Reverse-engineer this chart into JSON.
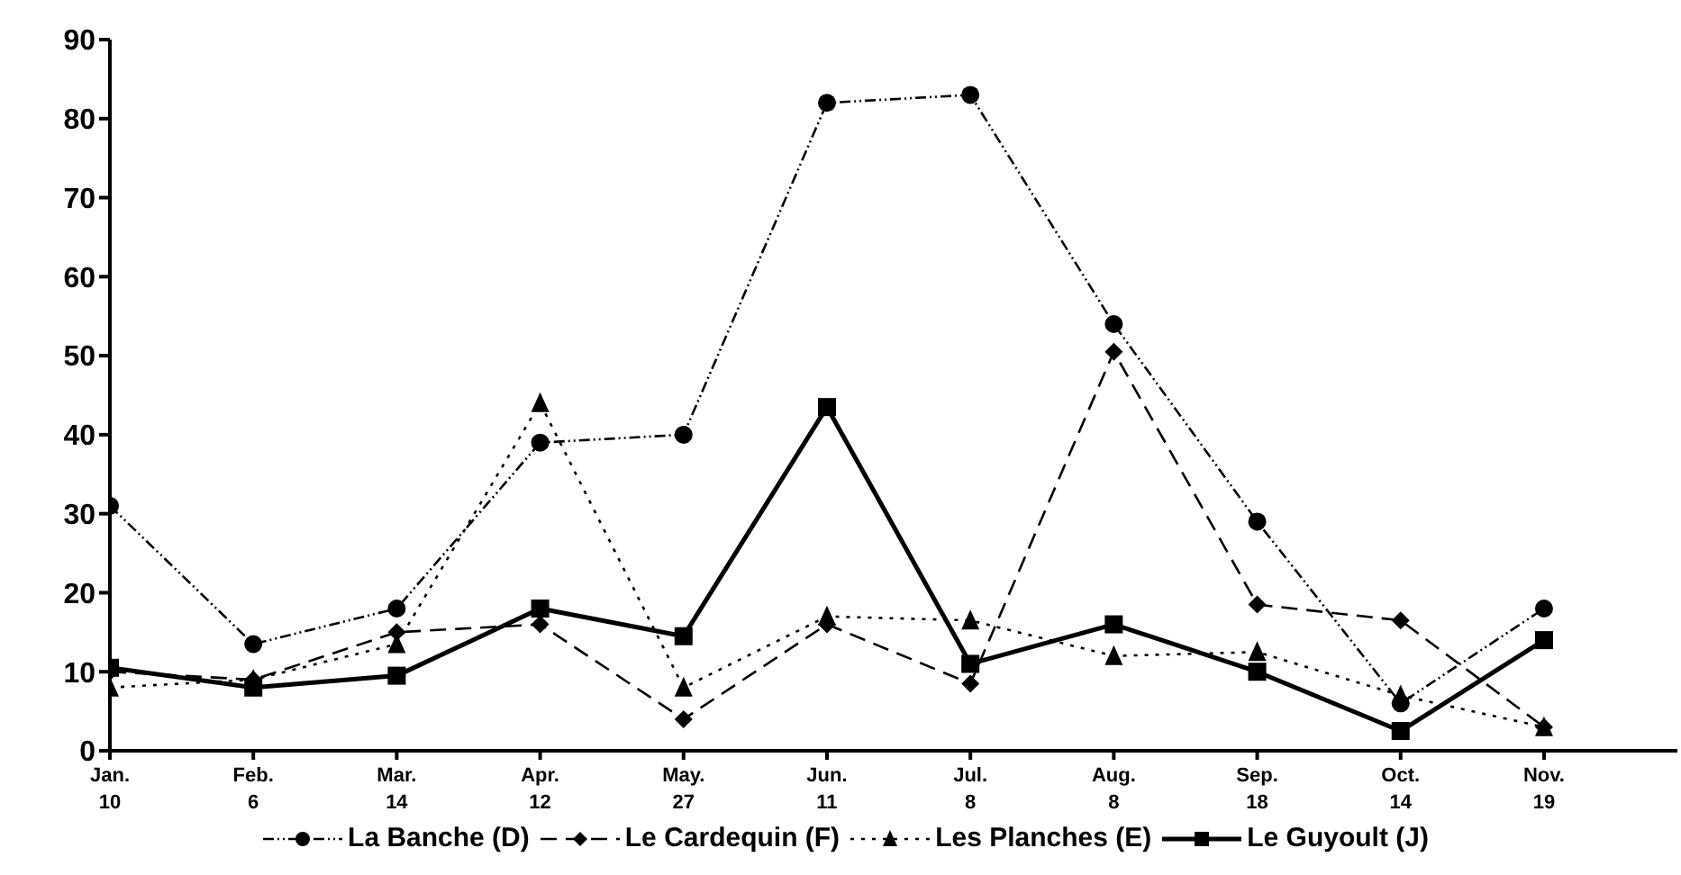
{
  "chart_data": {
    "type": "line",
    "categories": [
      "Jan.\n10",
      "Feb.\n6",
      "Mar.\n14",
      "Apr.\n12",
      "May.\n27",
      "Jun.\n11",
      "Jul.\n8",
      "Aug.\n8",
      "Sep.\n18",
      "Oct.\n14",
      "Nov.\n19"
    ],
    "series": [
      {
        "name": "La Banche (D)",
        "color": "#000000",
        "marker": "circle",
        "line_style": "dotted",
        "values": [
          31,
          13.5,
          18,
          39,
          40,
          82,
          83,
          54,
          29,
          6,
          18
        ]
      },
      {
        "name": "Le Cardequin (F)",
        "color": "#000000",
        "marker": "diamond",
        "line_style": "dashed",
        "values": [
          10,
          9,
          15,
          16,
          4,
          16,
          8.5,
          50.5,
          18.5,
          16.5,
          3
        ]
      },
      {
        "name": "Les Planches (E)",
        "color": "#000000",
        "marker": "triangle",
        "line_style": "dotted",
        "values": [
          8,
          9,
          13.5,
          44,
          8,
          17,
          16.5,
          12,
          12.5,
          7,
          3
        ]
      },
      {
        "name": "Le Guyoult (J)",
        "color": "#000000",
        "marker": "square",
        "line_style": "solid",
        "values": [
          10.5,
          8,
          9.5,
          18,
          14.5,
          43.5,
          11,
          16,
          10,
          2.5,
          14
        ]
      }
    ],
    "ylim": [
      0,
      90
    ],
    "yticks": [
      0,
      10,
      20,
      30,
      40,
      50,
      60,
      70,
      80,
      90
    ],
    "grid": false,
    "legend": "bottom"
  }
}
